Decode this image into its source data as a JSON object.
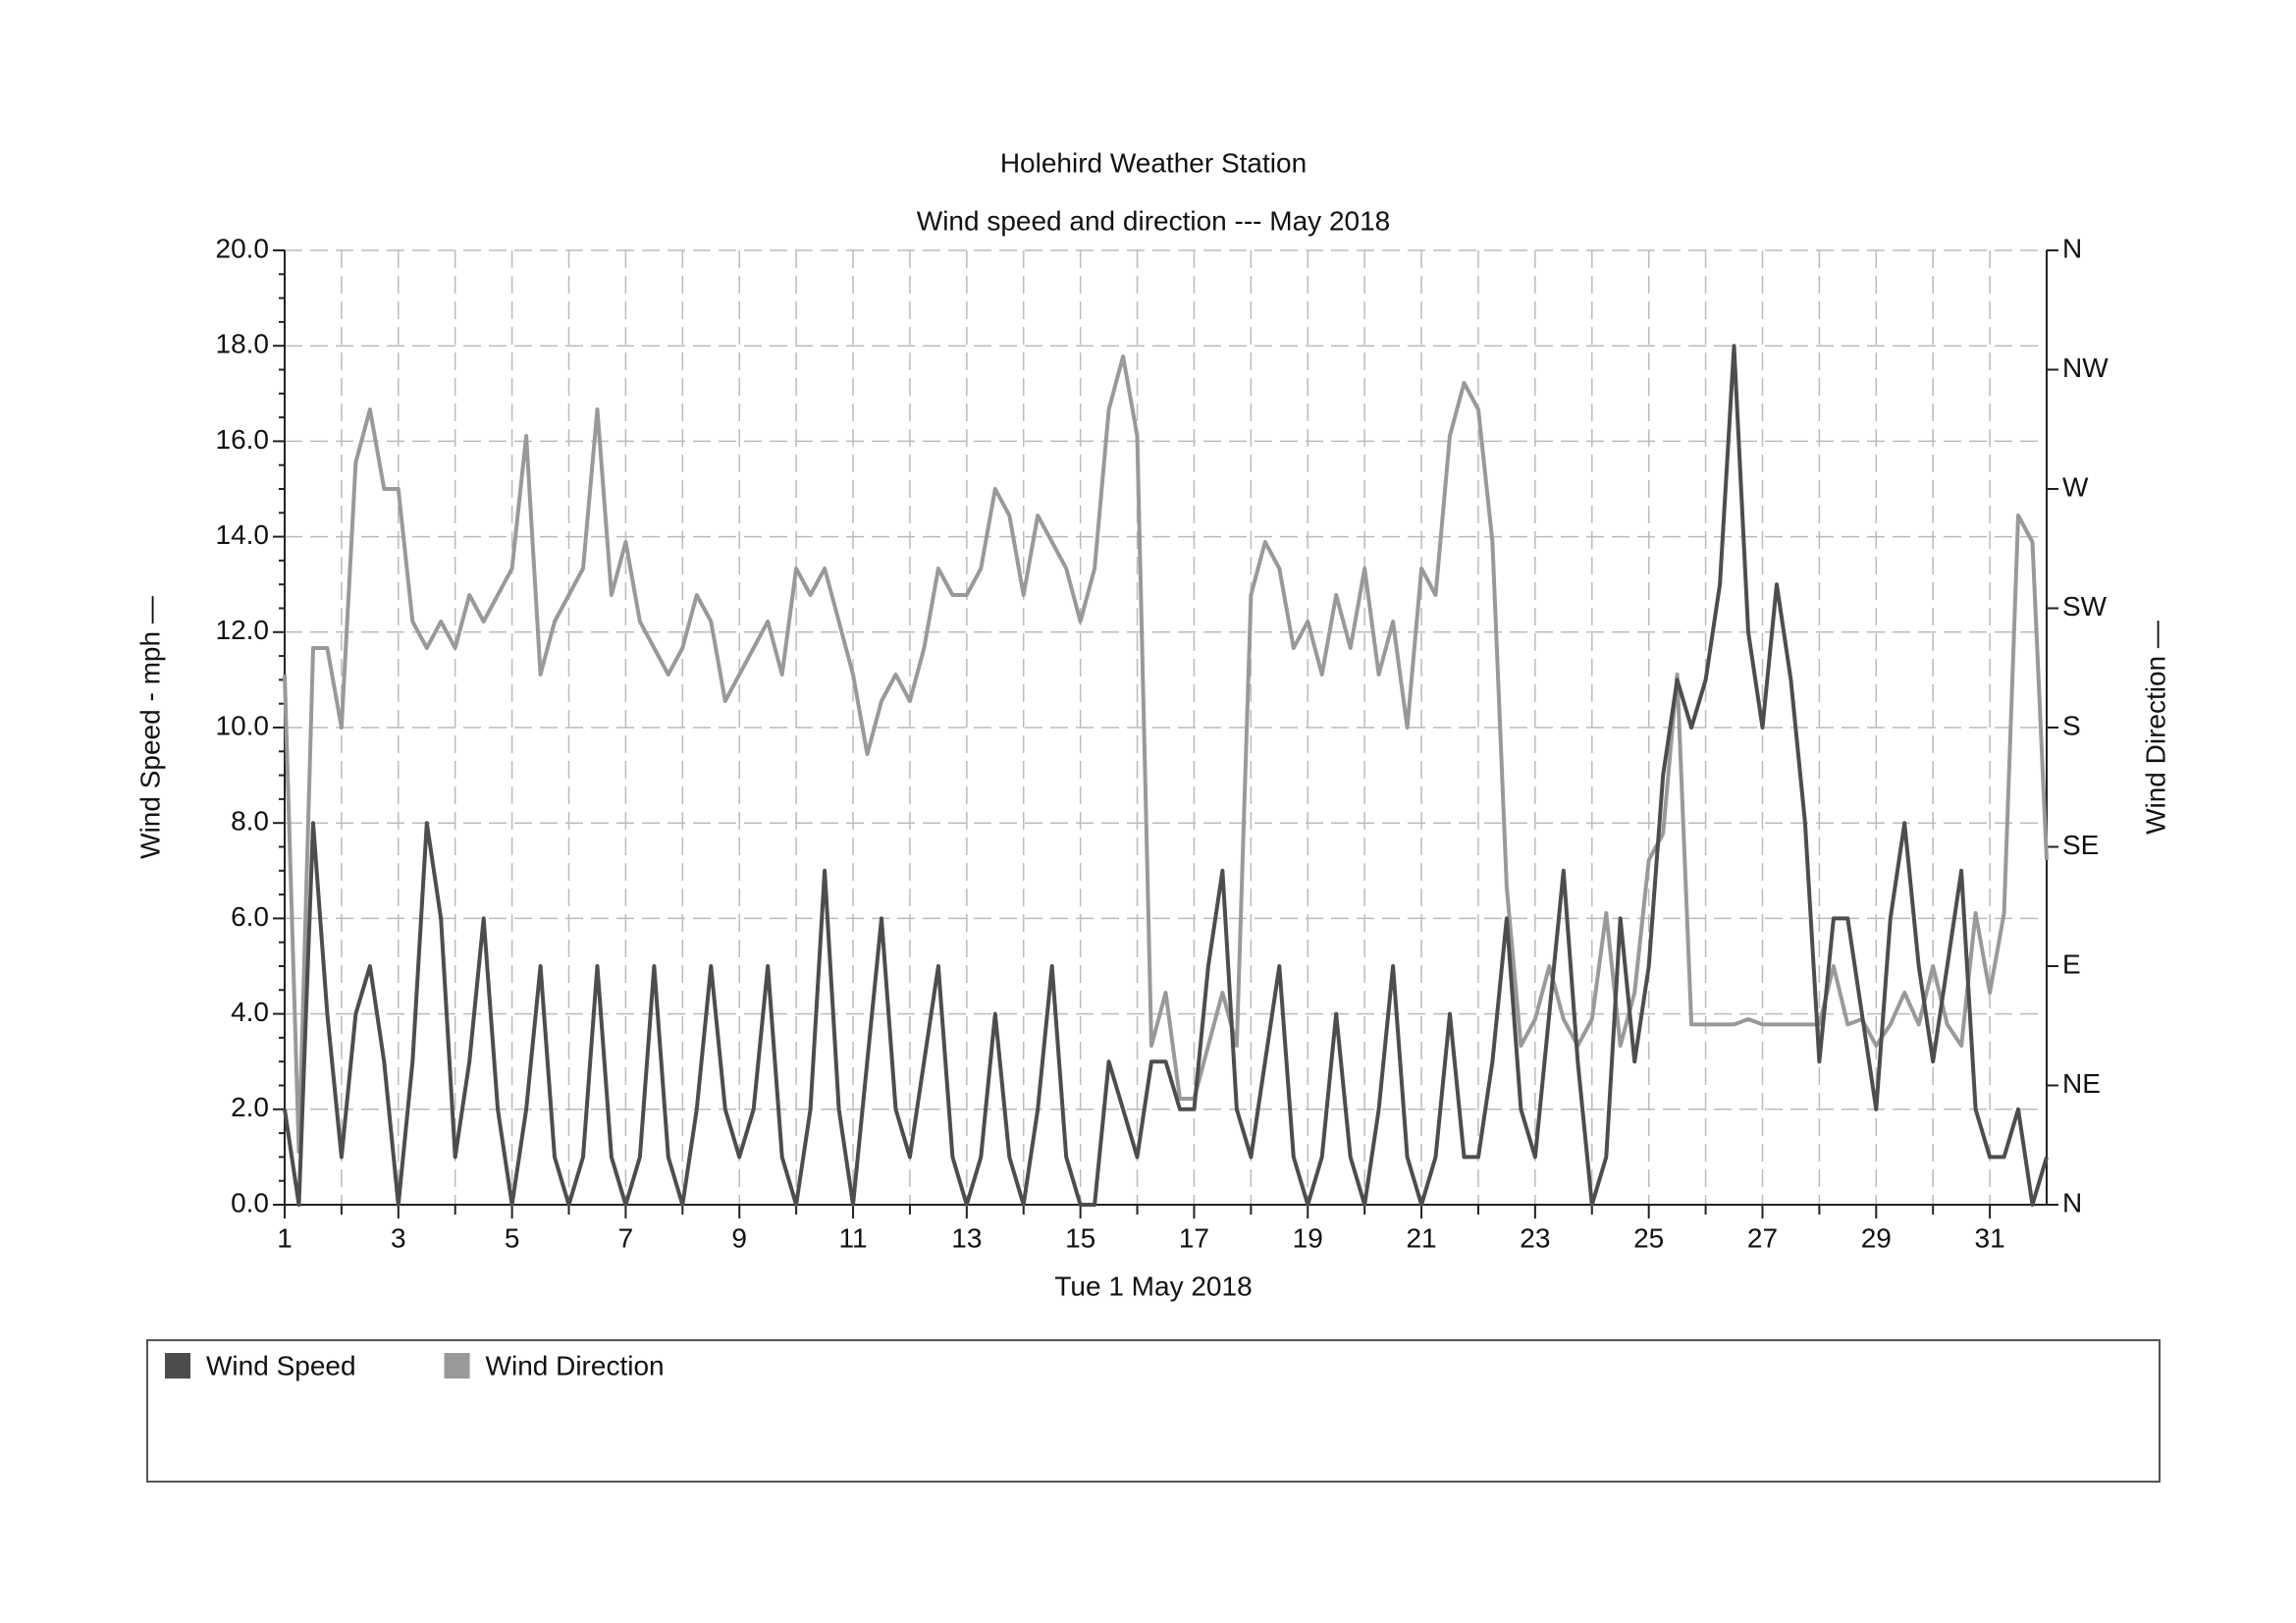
{
  "chart_data": {
    "type": "line",
    "title": "Holehird Weather Station",
    "subtitle": "Wind speed and direction --- May 2018",
    "x_label": "Tue 1 May 2018",
    "y_label": "Wind Speed - mph —",
    "y2_label": "Wind Direction —",
    "xlim": [
      1,
      32
    ],
    "xticks": [
      1,
      3,
      5,
      7,
      9,
      11,
      13,
      15,
      17,
      19,
      21,
      23,
      25,
      27,
      29,
      31
    ],
    "ylim": [
      0,
      20
    ],
    "yticks": [
      {
        "value": 0,
        "label": "0.0"
      },
      {
        "value": 2,
        "label": "2.0"
      },
      {
        "value": 4,
        "label": "4.0"
      },
      {
        "value": 6,
        "label": "6.0"
      },
      {
        "value": 8,
        "label": "8.0"
      },
      {
        "value": 10,
        "label": "10.0"
      },
      {
        "value": 12,
        "label": "12.0"
      },
      {
        "value": 14,
        "label": "14.0"
      },
      {
        "value": 16,
        "label": "16.0"
      },
      {
        "value": 18,
        "label": "18.0"
      },
      {
        "value": 20,
        "label": "20.0"
      }
    ],
    "y2lim": [
      0,
      360
    ],
    "y2ticks": [
      {
        "value": 0,
        "label": "N"
      },
      {
        "value": 45,
        "label": "NE"
      },
      {
        "value": 90,
        "label": "E"
      },
      {
        "value": 135,
        "label": "SE"
      },
      {
        "value": 180,
        "label": "S"
      },
      {
        "value": 225,
        "label": "SW"
      },
      {
        "value": 270,
        "label": "W"
      },
      {
        "value": 315,
        "label": "NW"
      },
      {
        "value": 360,
        "label": "N"
      }
    ],
    "grid": true,
    "legend": "bottom",
    "x": [
      1,
      1.25,
      1.5,
      1.75,
      2,
      2.25,
      2.5,
      2.75,
      3,
      3.25,
      3.5,
      3.75,
      4,
      4.25,
      4.5,
      4.75,
      5,
      5.25,
      5.5,
      5.75,
      6,
      6.25,
      6.5,
      6.75,
      7,
      7.25,
      7.5,
      7.75,
      8,
      8.25,
      8.5,
      8.75,
      9,
      9.25,
      9.5,
      9.75,
      10,
      10.25,
      10.5,
      10.75,
      11,
      11.25,
      11.5,
      11.75,
      12,
      12.25,
      12.5,
      12.75,
      13,
      13.25,
      13.5,
      13.75,
      14,
      14.25,
      14.5,
      14.75,
      15,
      15.25,
      15.5,
      15.75,
      16,
      16.25,
      16.5,
      16.75,
      17,
      17.25,
      17.5,
      17.75,
      18,
      18.25,
      18.5,
      18.75,
      19,
      19.25,
      19.5,
      19.75,
      20,
      20.25,
      20.5,
      20.75,
      21,
      21.25,
      21.5,
      21.75,
      22,
      22.25,
      22.5,
      22.75,
      23,
      23.25,
      23.5,
      23.75,
      24,
      24.25,
      24.5,
      24.75,
      25,
      25.25,
      25.5,
      25.75,
      26,
      26.25,
      26.5,
      26.75,
      27,
      27.25,
      27.5,
      27.75,
      28,
      28.25,
      28.5,
      28.75,
      29,
      29.25,
      29.5,
      29.75,
      30,
      30.25,
      30.5,
      30.75,
      31,
      31.25,
      31.5,
      31.75,
      32
    ],
    "series": [
      {
        "name": "Wind Speed",
        "color": "#4d4d4d",
        "values": [
          2,
          0,
          8,
          4,
          1,
          4,
          5,
          3,
          0,
          3,
          8,
          6,
          1,
          3,
          6,
          2,
          0,
          2,
          5,
          1,
          0,
          1,
          5,
          1,
          0,
          1,
          5,
          1,
          0,
          2,
          5,
          2,
          1,
          2,
          5,
          1,
          0,
          2,
          7,
          2,
          0,
          3,
          6,
          2,
          1,
          3,
          5,
          1,
          0,
          1,
          4,
          1,
          0,
          2,
          5,
          1,
          0,
          0,
          3,
          2,
          1,
          3,
          3,
          2,
          2,
          5,
          7,
          2,
          1,
          3,
          5,
          1,
          0,
          1,
          4,
          1,
          0,
          2,
          5,
          1,
          0,
          1,
          4,
          1,
          1,
          3,
          6,
          2,
          1,
          4,
          7,
          3,
          0,
          1,
          6,
          3,
          5,
          9,
          11,
          10,
          11,
          13,
          18,
          12,
          10,
          13,
          11,
          8,
          3,
          6,
          6,
          4,
          2,
          6,
          8,
          5,
          3,
          5,
          7,
          2,
          1,
          1,
          2,
          0,
          1
        ]
      },
      {
        "name": "Wind Direction",
        "color": "#999999",
        "axis": "y2",
        "values": [
          200,
          20,
          210,
          210,
          180,
          280,
          300,
          270,
          270,
          220,
          210,
          220,
          210,
          230,
          220,
          230,
          240,
          290,
          200,
          220,
          230,
          240,
          300,
          230,
          250,
          220,
          210,
          200,
          210,
          230,
          220,
          190,
          200,
          210,
          220,
          200,
          240,
          230,
          240,
          220,
          200,
          170,
          190,
          200,
          190,
          210,
          240,
          230,
          230,
          240,
          270,
          260,
          230,
          260,
          250,
          240,
          220,
          240,
          300,
          320,
          290,
          60,
          80,
          40,
          40,
          60,
          80,
          60,
          230,
          250,
          240,
          210,
          220,
          200,
          230,
          210,
          240,
          200,
          220,
          180,
          240,
          230,
          290,
          310,
          300,
          250,
          120,
          60,
          70,
          90,
          70,
          60,
          70,
          110,
          60,
          80,
          130,
          140,
          200,
          68,
          68,
          68,
          68,
          70,
          68,
          68,
          68,
          68,
          68,
          90,
          68,
          70,
          60,
          68,
          80,
          68,
          90,
          68,
          60,
          110,
          80,
          110,
          260,
          250,
          130
        ]
      }
    ]
  }
}
